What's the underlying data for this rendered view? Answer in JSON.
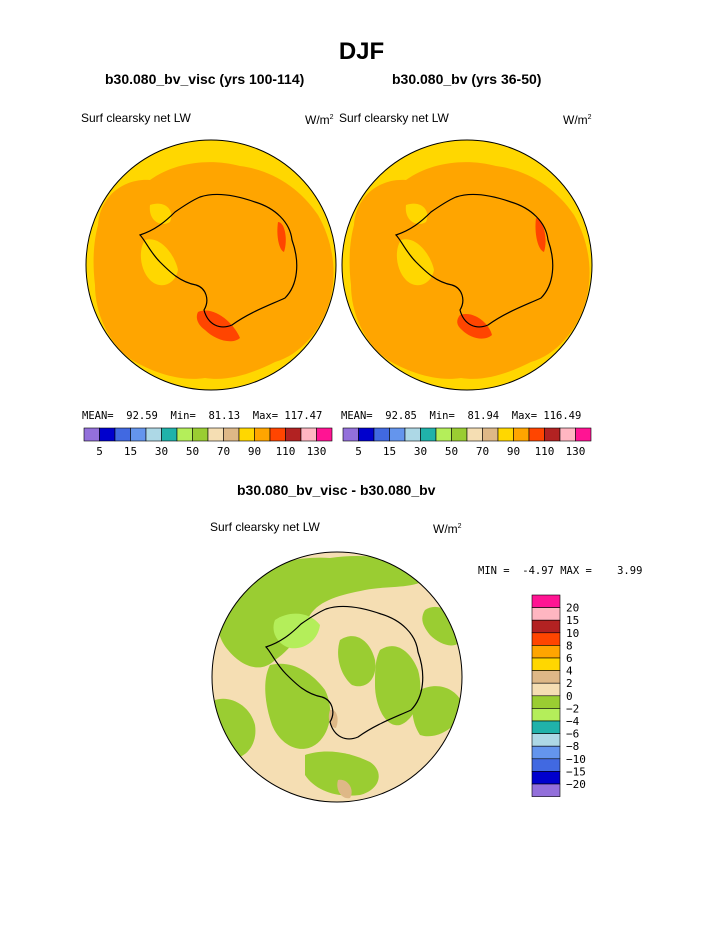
{
  "page": {
    "title": "DJF",
    "panel_left_title": "b30.080_bv_visc (yrs 100-114)",
    "panel_right_title": "b30.080_bv (yrs 36-50)",
    "diff_title": "b30.080_bv_visc - b30.080_bv",
    "field_label": "Surf clearsky net LW",
    "units_base": "W/m",
    "units_sup": "2"
  },
  "chart_data": [
    {
      "type": "heatmap",
      "name": "b30.080_bv_visc (yrs 100-114)",
      "variable": "Surf clearsky net LW",
      "stats": {
        "mean_label": "MEAN=",
        "mean": "92.59",
        "min_label": "Min=",
        "min": "81.13",
        "max_label": "Max=",
        "max": "117.47"
      },
      "levels": [
        5,
        10,
        15,
        20,
        30,
        40,
        50,
        60,
        70,
        80,
        90,
        100,
        110,
        120,
        130
      ],
      "tick_labels": [
        "5",
        "15",
        "30",
        "50",
        "70",
        "90",
        "110",
        "130"
      ],
      "colors": [
        "#9370db",
        "#0000cd",
        "#4169e1",
        "#6495ed",
        "#add8e6",
        "#20b2aa",
        "#b4ee5a",
        "#9acd32",
        "#f5deb3",
        "#deb887",
        "#ffd700",
        "#ffa500",
        "#ff4500",
        "#b22222",
        "#ffb6c1",
        "#ff1493"
      ]
    },
    {
      "type": "heatmap",
      "name": "b30.080_bv (yrs 36-50)",
      "variable": "Surf clearsky net LW",
      "stats": {
        "mean_label": "MEAN=",
        "mean": "92.85",
        "min_label": "Min=",
        "min": "81.94",
        "max_label": "Max=",
        "max": "116.49"
      },
      "levels": [
        5,
        10,
        15,
        20,
        30,
        40,
        50,
        60,
        70,
        80,
        90,
        100,
        110,
        120,
        130
      ],
      "tick_labels": [
        "5",
        "15",
        "30",
        "50",
        "70",
        "90",
        "110",
        "130"
      ],
      "colors": [
        "#9370db",
        "#0000cd",
        "#4169e1",
        "#6495ed",
        "#add8e6",
        "#20b2aa",
        "#b4ee5a",
        "#9acd32",
        "#f5deb3",
        "#deb887",
        "#ffd700",
        "#ffa500",
        "#ff4500",
        "#b22222",
        "#ffb6c1",
        "#ff1493"
      ]
    },
    {
      "type": "heatmap",
      "name": "b30.080_bv_visc - b30.080_bv",
      "variable": "Surf clearsky net LW",
      "stats": {
        "min_label": "MIN =",
        "min": "-4.97",
        "max_label": "MAX =",
        "max": "3.99"
      },
      "levels": [
        20,
        15,
        10,
        8,
        6,
        4,
        2,
        0,
        -2,
        -4,
        -6,
        -8,
        -10,
        -15,
        -20
      ],
      "tick_labels": [
        "20",
        "15",
        "10",
        "8",
        "6",
        "4",
        "2",
        "0",
        "−2",
        "−4",
        "−6",
        "−8",
        "−10",
        "−15",
        "−20"
      ],
      "colors": [
        "#ff1493",
        "#ffb6c1",
        "#b22222",
        "#ff4500",
        "#ffa500",
        "#ffd700",
        "#deb887",
        "#f5deb3",
        "#9acd32",
        "#b4ee5a",
        "#20b2aa",
        "#add8e6",
        "#6495ed",
        "#4169e1",
        "#0000cd",
        "#9370db"
      ]
    }
  ]
}
